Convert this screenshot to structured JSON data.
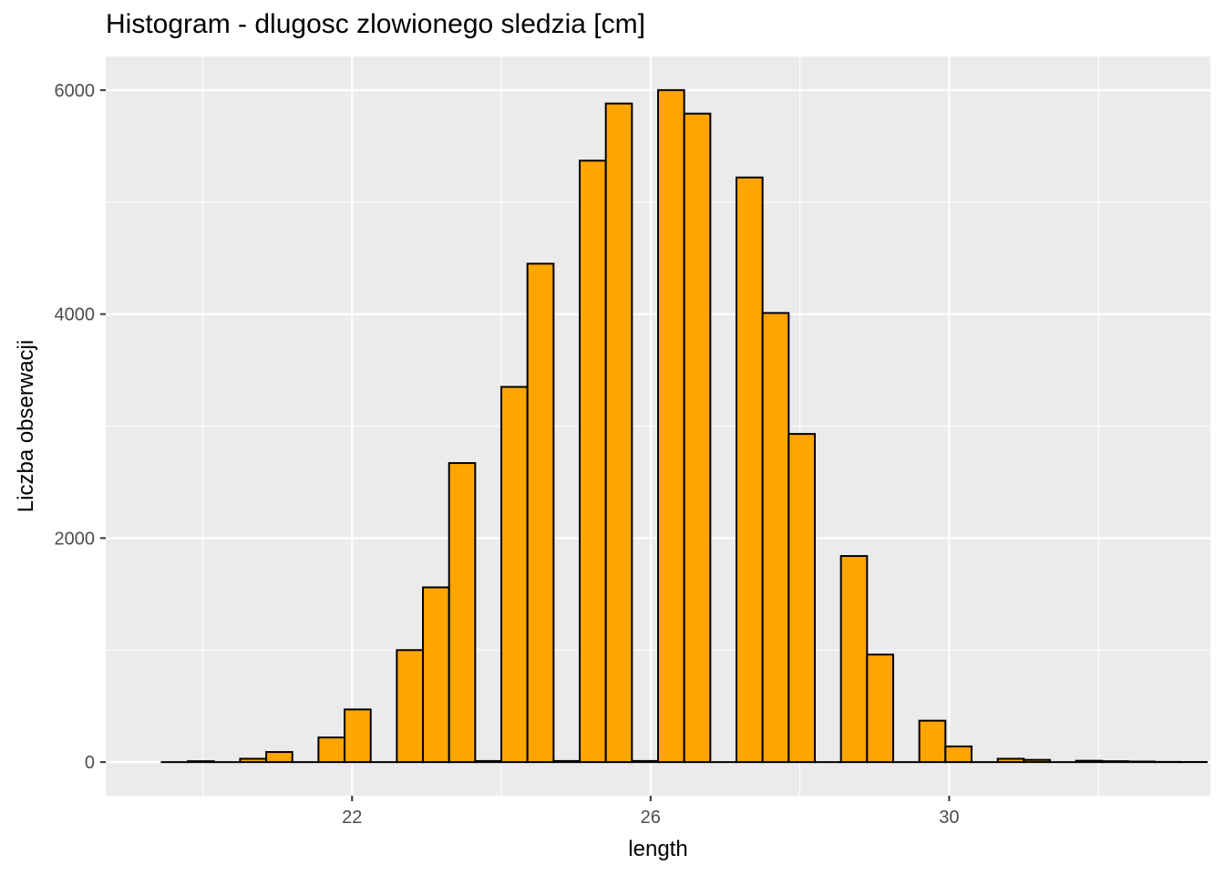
{
  "chart_data": {
    "type": "bar",
    "title": "Histogram - dlugosc zlowionego sledzia [cm]",
    "xlabel": "length",
    "ylabel": "Liczba obserwacji",
    "xlim": [
      18.7,
      33.5
    ],
    "ylim": [
      -300,
      6300
    ],
    "x_ticks": [
      22,
      26,
      30
    ],
    "y_ticks": [
      0,
      2000,
      4000,
      6000
    ],
    "x_minor_ticks": [
      20,
      24,
      28,
      32
    ],
    "y_minor_ticks": [
      1000,
      3000,
      5000
    ],
    "grid": true,
    "bar_fill": "#FFA500",
    "bar_stroke": "#000000",
    "panel_background": "#EBEBEB",
    "bins": [
      {
        "x": 19.625,
        "count": 0
      },
      {
        "x": 19.975,
        "count": 8
      },
      {
        "x": 20.325,
        "count": 0
      },
      {
        "x": 20.675,
        "count": 30
      },
      {
        "x": 21.025,
        "count": 90
      },
      {
        "x": 21.375,
        "count": 0
      },
      {
        "x": 21.725,
        "count": 220
      },
      {
        "x": 22.075,
        "count": 470
      },
      {
        "x": 22.425,
        "count": 0
      },
      {
        "x": 22.775,
        "count": 1000
      },
      {
        "x": 23.125,
        "count": 1560
      },
      {
        "x": 23.475,
        "count": 2670
      },
      {
        "x": 23.825,
        "count": 10
      },
      {
        "x": 24.175,
        "count": 3350
      },
      {
        "x": 24.525,
        "count": 4450
      },
      {
        "x": 24.875,
        "count": 10
      },
      {
        "x": 25.225,
        "count": 5370
      },
      {
        "x": 25.575,
        "count": 5880
      },
      {
        "x": 25.925,
        "count": 10
      },
      {
        "x": 26.275,
        "count": 6000
      },
      {
        "x": 26.625,
        "count": 5790
      },
      {
        "x": 26.975,
        "count": 0
      },
      {
        "x": 27.325,
        "count": 5220
      },
      {
        "x": 27.675,
        "count": 4010
      },
      {
        "x": 28.025,
        "count": 2930
      },
      {
        "x": 28.375,
        "count": 0
      },
      {
        "x": 28.725,
        "count": 1840
      },
      {
        "x": 29.075,
        "count": 960
      },
      {
        "x": 29.425,
        "count": 0
      },
      {
        "x": 29.775,
        "count": 370
      },
      {
        "x": 30.125,
        "count": 140
      },
      {
        "x": 30.475,
        "count": 0
      },
      {
        "x": 30.825,
        "count": 30
      },
      {
        "x": 31.175,
        "count": 20
      },
      {
        "x": 31.525,
        "count": 0
      },
      {
        "x": 31.875,
        "count": 12
      },
      {
        "x": 32.225,
        "count": 8
      },
      {
        "x": 32.575,
        "count": 5
      },
      {
        "x": 32.925,
        "count": 2
      },
      {
        "x": 33.275,
        "count": 1
      }
    ],
    "bin_width": 0.35
  }
}
